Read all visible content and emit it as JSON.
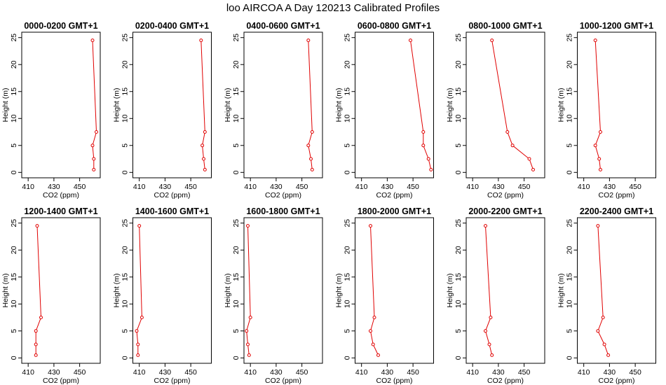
{
  "figure": {
    "title": "loo AIRCOA A  Day 120213  Calibrated Profiles"
  },
  "style": {
    "line_color": "#e00000",
    "axis_color": "#000000",
    "background": "#ffffff"
  },
  "chart_data": [
    {
      "type": "line",
      "title": "0000-0200 GMT+1",
      "xlabel": "CO2 (ppm)",
      "ylabel": "Height (m)",
      "xlim": [
        405,
        466
      ],
      "ylim": [
        -1,
        26
      ],
      "xticks": [
        410,
        430,
        450
      ],
      "yticks": [
        0,
        5,
        10,
        15,
        20,
        25
      ],
      "grid": false,
      "series": [
        {
          "x": [
            461,
            461,
            460,
            463,
            460
          ],
          "y": [
            0.5,
            2.5,
            5,
            7.5,
            24.5
          ]
        }
      ]
    },
    {
      "type": "line",
      "title": "0200-0400 GMT+1",
      "xlabel": "CO2 (ppm)",
      "ylabel": "Height (m)",
      "xlim": [
        405,
        466
      ],
      "ylim": [
        -1,
        26
      ],
      "xticks": [
        410,
        430,
        450
      ],
      "yticks": [
        0,
        5,
        10,
        15,
        20,
        25
      ],
      "grid": false,
      "series": [
        {
          "x": [
            461,
            460,
            459,
            461,
            458
          ],
          "y": [
            0.5,
            2.5,
            5,
            7.5,
            24.5
          ]
        }
      ]
    },
    {
      "type": "line",
      "title": "0400-0600 GMT+1",
      "xlabel": "CO2 (ppm)",
      "ylabel": "Height (m)",
      "xlim": [
        405,
        466
      ],
      "ylim": [
        -1,
        26
      ],
      "xticks": [
        410,
        430,
        450
      ],
      "yticks": [
        0,
        5,
        10,
        15,
        20,
        25
      ],
      "grid": false,
      "series": [
        {
          "x": [
            458,
            457,
            455,
            458,
            455
          ],
          "y": [
            0.5,
            2.5,
            5,
            7.5,
            24.5
          ]
        }
      ]
    },
    {
      "type": "line",
      "title": "0600-0800 GMT+1",
      "xlabel": "CO2 (ppm)",
      "ylabel": "Height (m)",
      "xlim": [
        405,
        466
      ],
      "ylim": [
        -1,
        26
      ],
      "xticks": [
        410,
        430,
        450
      ],
      "yticks": [
        0,
        5,
        10,
        15,
        20,
        25
      ],
      "grid": false,
      "series": [
        {
          "x": [
            464,
            462,
            458,
            458,
            448
          ],
          "y": [
            0.5,
            2.5,
            5,
            7.5,
            24.5
          ]
        }
      ]
    },
    {
      "type": "line",
      "title": "0800-1000 GMT+1",
      "xlabel": "CO2 (ppm)",
      "ylabel": "Height (m)",
      "xlim": [
        405,
        466
      ],
      "ylim": [
        -1,
        26
      ],
      "xticks": [
        410,
        430,
        450
      ],
      "yticks": [
        0,
        5,
        10,
        15,
        20,
        25
      ],
      "grid": false,
      "series": [
        {
          "x": [
            457,
            454,
            441,
            437,
            425
          ],
          "y": [
            0.5,
            2.5,
            5,
            7.5,
            24.5
          ]
        }
      ]
    },
    {
      "type": "line",
      "title": "1000-1200 GMT+1",
      "xlabel": "CO2 (ppm)",
      "ylabel": "Height (m)",
      "xlim": [
        405,
        466
      ],
      "ylim": [
        -1,
        26
      ],
      "xticks": [
        410,
        430,
        450
      ],
      "yticks": [
        0,
        5,
        10,
        15,
        20,
        25
      ],
      "grid": false,
      "series": [
        {
          "x": [
            423,
            422,
            419,
            423,
            419
          ],
          "y": [
            0.5,
            2.5,
            5,
            7.5,
            24.5
          ]
        }
      ]
    },
    {
      "type": "line",
      "title": "1200-1400 GMT+1",
      "xlabel": "CO2 (ppm)",
      "ylabel": "Height (m)",
      "xlim": [
        405,
        466
      ],
      "ylim": [
        -1,
        26
      ],
      "xticks": [
        410,
        430,
        450
      ],
      "yticks": [
        0,
        5,
        10,
        15,
        20,
        25
      ],
      "grid": false,
      "series": [
        {
          "x": [
            416,
            416,
            416,
            420,
            417
          ],
          "y": [
            0.5,
            2.5,
            5,
            7.5,
            24.5
          ]
        }
      ]
    },
    {
      "type": "line",
      "title": "1400-1600 GMT+1",
      "xlabel": "CO2 (ppm)",
      "ylabel": "Height (m)",
      "xlim": [
        405,
        466
      ],
      "ylim": [
        -1,
        26
      ],
      "xticks": [
        410,
        430,
        450
      ],
      "yticks": [
        0,
        5,
        10,
        15,
        20,
        25
      ],
      "grid": false,
      "series": [
        {
          "x": [
            409,
            409,
            408,
            412,
            410
          ],
          "y": [
            0.5,
            2.5,
            5,
            7.5,
            24.5
          ]
        }
      ]
    },
    {
      "type": "line",
      "title": "1600-1800 GMT+1",
      "xlabel": "CO2 (ppm)",
      "ylabel": "Height (m)",
      "xlim": [
        405,
        466
      ],
      "ylim": [
        -1,
        26
      ],
      "xticks": [
        410,
        430,
        450
      ],
      "yticks": [
        0,
        5,
        10,
        15,
        20,
        25
      ],
      "grid": false,
      "series": [
        {
          "x": [
            409,
            408,
            407,
            410,
            408
          ],
          "y": [
            0.5,
            2.5,
            5,
            7.5,
            24.5
          ]
        }
      ]
    },
    {
      "type": "line",
      "title": "1800-2000 GMT+1",
      "xlabel": "CO2 (ppm)",
      "ylabel": "Height (m)",
      "xlim": [
        405,
        466
      ],
      "ylim": [
        -1,
        26
      ],
      "xticks": [
        410,
        430,
        450
      ],
      "yticks": [
        0,
        5,
        10,
        15,
        20,
        25
      ],
      "grid": false,
      "series": [
        {
          "x": [
            423,
            419,
            417,
            420,
            417
          ],
          "y": [
            0.5,
            2.5,
            5,
            7.5,
            24.5
          ]
        }
      ]
    },
    {
      "type": "line",
      "title": "2000-2200 GMT+1",
      "xlabel": "CO2 (ppm)",
      "ylabel": "Height (m)",
      "xlim": [
        405,
        466
      ],
      "ylim": [
        -1,
        26
      ],
      "xticks": [
        410,
        430,
        450
      ],
      "yticks": [
        0,
        5,
        10,
        15,
        20,
        25
      ],
      "grid": false,
      "series": [
        {
          "x": [
            425,
            423,
            420,
            424,
            420
          ],
          "y": [
            0.5,
            2.5,
            5,
            7.5,
            24.5
          ]
        }
      ]
    },
    {
      "type": "line",
      "title": "2200-2400 GMT+1",
      "xlabel": "CO2 (ppm)",
      "ylabel": "Height (m)",
      "xlim": [
        405,
        466
      ],
      "ylim": [
        -1,
        26
      ],
      "xticks": [
        410,
        430,
        450
      ],
      "yticks": [
        0,
        5,
        10,
        15,
        20,
        25
      ],
      "grid": false,
      "series": [
        {
          "x": [
            429,
            426,
            421,
            425,
            421
          ],
          "y": [
            0.5,
            2.5,
            5,
            7.5,
            24.5
          ]
        }
      ]
    }
  ]
}
